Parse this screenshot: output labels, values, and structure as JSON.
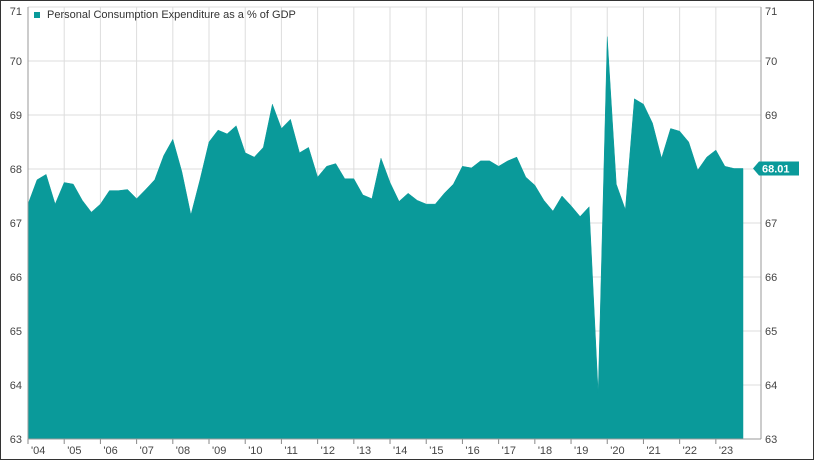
{
  "chart_data": {
    "type": "area",
    "title": "",
    "xlabel": "",
    "ylabel": "",
    "legend": {
      "position": "top-left",
      "entries": [
        {
          "name": "Personal Consumption Expenditure as a % of GDP",
          "color": "#0a9a9a"
        }
      ]
    },
    "grid": true,
    "ylim": [
      63,
      71
    ],
    "y_ticks": [
      63,
      64,
      65,
      66,
      67,
      68,
      69,
      70,
      71
    ],
    "y_tick_labels": [
      "63",
      "64",
      "65",
      "66",
      "67",
      "68",
      "69",
      "70",
      "71"
    ],
    "xlim": [
      2004.0,
      2024.0
    ],
    "x_ticks": [
      2004,
      2005,
      2006,
      2007,
      2008,
      2009,
      2010,
      2011,
      2012,
      2013,
      2014,
      2015,
      2016,
      2017,
      2018,
      2019,
      2020,
      2021,
      2022,
      2023
    ],
    "x_tick_labels": [
      "'04",
      "'05",
      "'06",
      "'07",
      "'08",
      "'09",
      "'10",
      "'11",
      "'12",
      "'13",
      "'14",
      "'15",
      "'16",
      "'17",
      "'18",
      "'19",
      "'20",
      "'21",
      "'22",
      "'23"
    ],
    "last_value_label": "68.01",
    "series": [
      {
        "name": "Personal Consumption Expenditure as a % of GDP",
        "color": "#0a9a9a",
        "x": [
          2004.0,
          2004.25,
          2004.5,
          2004.75,
          2005.0,
          2005.25,
          2005.5,
          2005.75,
          2006.0,
          2006.25,
          2006.5,
          2006.75,
          2007.0,
          2007.25,
          2007.5,
          2007.75,
          2008.0,
          2008.25,
          2008.5,
          2008.75,
          2009.0,
          2009.25,
          2009.5,
          2009.75,
          2010.0,
          2010.25,
          2010.5,
          2010.75,
          2011.0,
          2011.25,
          2011.5,
          2011.75,
          2012.0,
          2012.25,
          2012.5,
          2012.75,
          2013.0,
          2013.25,
          2013.5,
          2013.75,
          2014.0,
          2014.25,
          2014.5,
          2014.75,
          2015.0,
          2015.25,
          2015.5,
          2015.75,
          2016.0,
          2016.25,
          2016.5,
          2016.75,
          2017.0,
          2017.25,
          2017.5,
          2017.75,
          2018.0,
          2018.25,
          2018.5,
          2018.75,
          2019.0,
          2019.25,
          2019.5,
          2019.75,
          2020.0,
          2020.25,
          2020.5,
          2020.75,
          2021.0,
          2021.25,
          2021.5,
          2021.75,
          2022.0,
          2022.25,
          2022.5,
          2022.75,
          2023.0,
          2023.25,
          2023.5,
          2023.75
        ],
        "values": [
          67.35,
          67.8,
          67.9,
          67.35,
          67.75,
          67.72,
          67.42,
          67.2,
          67.35,
          67.6,
          67.6,
          67.62,
          67.45,
          67.62,
          67.8,
          68.25,
          68.55,
          67.95,
          67.15,
          67.8,
          68.5,
          68.72,
          68.65,
          68.8,
          68.3,
          68.22,
          68.4,
          69.2,
          68.75,
          68.92,
          68.3,
          68.4,
          67.85,
          68.05,
          68.1,
          67.82,
          67.82,
          67.52,
          67.45,
          68.2,
          67.75,
          67.4,
          67.55,
          67.42,
          67.35,
          67.35,
          67.55,
          67.72,
          68.05,
          68.02,
          68.15,
          68.15,
          68.05,
          68.15,
          68.22,
          67.85,
          67.7,
          67.42,
          67.22,
          67.5,
          67.32,
          67.12,
          67.3,
          63.85,
          70.45,
          67.72,
          67.25,
          69.3,
          69.2,
          68.85,
          68.2,
          68.75,
          68.7,
          68.5,
          67.98,
          68.22,
          68.35,
          68.05,
          68.01,
          68.01
        ]
      }
    ]
  }
}
